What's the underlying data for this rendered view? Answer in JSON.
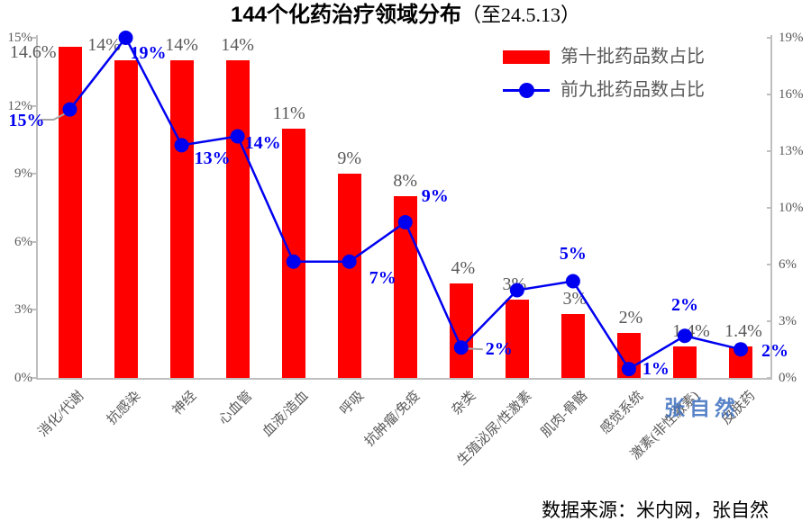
{
  "title": {
    "main": "144个化药治疗领域分布",
    "suffix": "（至24.5.13）"
  },
  "legend": {
    "bar_series": "第十批药品数占比",
    "line_series": "前九批药品数占比"
  },
  "watermark": "张自然",
  "source": "数据来源：米内网，张自然",
  "colors": {
    "bar": "#ff0000",
    "line": "#0000f0",
    "point_label": "#0000f0",
    "text_gray": "#595959",
    "axis": "#bfbfbf",
    "leader": "#a6a6a6",
    "watermark": "rgba(60,110,190,0.85)"
  },
  "chart_data": {
    "type": "bar",
    "combo": "bar + line (secondary axis)",
    "title": "144个化药治疗领域分布（至24.5.13）",
    "categories": [
      "消化/代谢",
      "抗感染",
      "神经",
      "心血管",
      "血液/造血",
      "呼吸",
      "抗肿瘤/免疫",
      "杂类",
      "生殖泌尿/性激素",
      "肌肉-骨骼",
      "感觉系统",
      "激素(非性激素)",
      "皮肤药"
    ],
    "series": [
      {
        "name": "第十批药品数占比",
        "type": "bar",
        "axis": "left",
        "color": "#ff0000",
        "values": [
          14.6,
          14,
          14,
          14,
          11,
          9,
          8,
          4,
          3,
          3,
          2,
          1.4,
          1.4
        ],
        "data_labels": [
          "14.6%",
          "14%",
          "14%",
          "14%",
          "11%",
          "9%",
          "8%",
          "4%",
          "3%",
          "3%",
          "2%",
          "1.4%",
          "1.4%"
        ]
      },
      {
        "name": "前九批药品数占比",
        "type": "line",
        "axis": "right",
        "color": "#0000f0",
        "marker": "circle",
        "values": [
          15,
          19,
          13,
          14,
          7,
          7,
          9,
          2,
          5,
          5,
          1,
          2,
          2
        ],
        "data_labels": [
          "15%",
          "19%",
          "13%",
          "14%",
          "",
          "7%",
          "9%",
          "2%",
          "",
          "5%",
          "1%",
          "2%",
          "2%"
        ]
      }
    ],
    "left_axis": {
      "min": 0,
      "max": 15,
      "tick_labels": [
        "0%",
        "3%",
        "6%",
        "9%",
        "12%",
        "15%"
      ]
    },
    "right_axis": {
      "min": 0,
      "max": 19,
      "tick_labels": [
        "0%",
        "3%",
        "6%",
        "10%",
        "13%",
        "16%",
        "19%"
      ]
    },
    "gridlines": false,
    "legend_position": "top-right"
  }
}
